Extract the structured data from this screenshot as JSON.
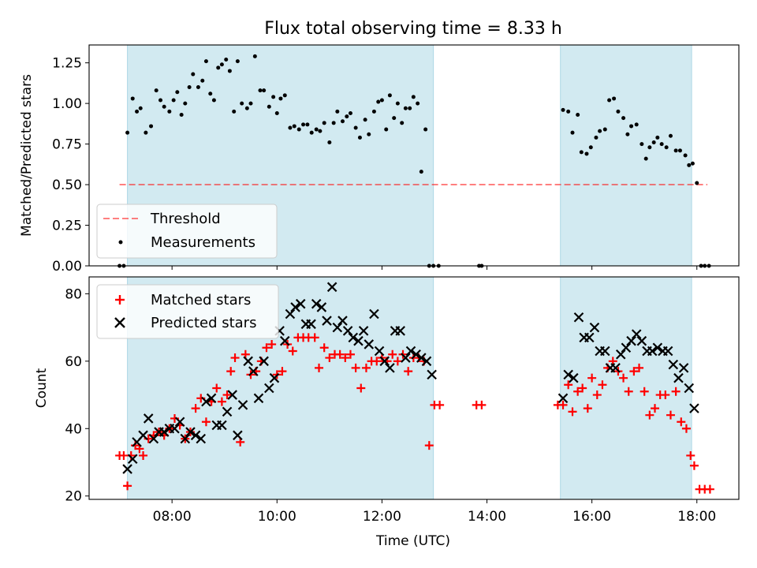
{
  "title": "Flux total observing time = 8.33 h",
  "colors": {
    "band": "#add8e6",
    "threshold": "#ff0000",
    "measurement": "#000000",
    "matched": "#ff0000",
    "predicted": "#000000"
  },
  "chart_data": [
    {
      "type": "scatter",
      "ylabel": "Matched/Predicted stars",
      "ylim": [
        0,
        1.36
      ],
      "yticks": [
        0,
        0.25,
        0.5,
        0.75,
        1.0,
        1.25
      ],
      "ytick_labels": [
        "0.00",
        "0.25",
        "0.50",
        "0.75",
        "1.00",
        "1.25"
      ],
      "xlim": [
        6.42,
        18.8
      ],
      "xticks": [
        8,
        10,
        12,
        14,
        16,
        18
      ],
      "legend": {
        "position": "lower-left",
        "entries": [
          {
            "label": "Threshold",
            "kind": "line"
          },
          {
            "label": "Measurements",
            "kind": "dot"
          }
        ]
      },
      "observing_windows": [
        [
          7.15,
          12.98
        ],
        [
          15.4,
          17.9
        ]
      ],
      "threshold": {
        "y": 0.5,
        "x_start": 7.0,
        "x_end": 18.2
      },
      "series": [
        {
          "name": "Measurements",
          "x": [
            7.0,
            7.08,
            7.15,
            7.25,
            7.33,
            7.4,
            7.5,
            7.6,
            7.7,
            7.78,
            7.85,
            7.95,
            8.03,
            8.1,
            8.18,
            8.25,
            8.33,
            8.4,
            8.5,
            8.58,
            8.65,
            8.73,
            8.8,
            8.88,
            8.95,
            9.03,
            9.1,
            9.18,
            9.25,
            9.33,
            9.43,
            9.5,
            9.58,
            9.68,
            9.75,
            9.85,
            9.93,
            10.0,
            10.07,
            10.15,
            10.25,
            10.33,
            10.42,
            10.5,
            10.58,
            10.66,
            10.75,
            10.82,
            10.9,
            11.0,
            11.08,
            11.15,
            11.25,
            11.33,
            11.4,
            11.5,
            11.58,
            11.68,
            11.75,
            11.85,
            11.93,
            12.0,
            12.08,
            12.15,
            12.23,
            12.3,
            12.38,
            12.45,
            12.53,
            12.6,
            12.68,
            12.75,
            12.83,
            12.9,
            12.98,
            13.08,
            13.85,
            13.9,
            15.45,
            15.55,
            15.63,
            15.73,
            15.8,
            15.9,
            15.98,
            16.08,
            16.15,
            16.25,
            16.33,
            16.42,
            16.5,
            16.6,
            16.68,
            16.75,
            16.85,
            16.95,
            17.03,
            17.1,
            17.18,
            17.25,
            17.33,
            17.42,
            17.5,
            17.6,
            17.68,
            17.78,
            17.85,
            17.92,
            18.0,
            18.08,
            18.15,
            18.23
          ],
          "y": [
            0.0,
            0.0,
            0.82,
            1.03,
            0.95,
            0.97,
            0.82,
            0.86,
            1.08,
            1.02,
            0.98,
            0.95,
            1.02,
            1.07,
            0.93,
            1.0,
            1.1,
            1.18,
            1.1,
            1.14,
            1.26,
            1.06,
            1.02,
            1.22,
            1.24,
            1.27,
            1.2,
            0.95,
            1.26,
            1.0,
            0.97,
            1.0,
            1.29,
            1.08,
            1.08,
            0.98,
            1.04,
            0.94,
            1.03,
            1.05,
            0.85,
            0.86,
            0.84,
            0.87,
            0.87,
            0.82,
            0.84,
            0.83,
            0.88,
            0.76,
            0.88,
            0.95,
            0.89,
            0.92,
            0.94,
            0.85,
            0.79,
            0.9,
            0.81,
            0.95,
            1.01,
            1.02,
            0.84,
            1.05,
            0.91,
            1.0,
            0.88,
            0.97,
            0.97,
            1.04,
            1.0,
            0.58,
            0.84,
            0.0,
            0.0,
            0.0,
            0.0,
            0.0,
            0.96,
            0.95,
            0.82,
            0.93,
            0.7,
            0.69,
            0.73,
            0.79,
            0.83,
            0.84,
            1.02,
            1.03,
            0.95,
            0.91,
            0.81,
            0.86,
            0.87,
            0.75,
            0.66,
            0.73,
            0.76,
            0.79,
            0.75,
            0.73,
            0.8,
            0.71,
            0.71,
            0.68,
            0.62,
            0.63,
            0.51,
            0.0,
            0.0,
            0.0
          ]
        }
      ]
    },
    {
      "type": "scatter",
      "xlabel": "Time (UTC)",
      "ylabel": "Count",
      "ylim": [
        19,
        85
      ],
      "yticks": [
        20,
        40,
        60,
        80
      ],
      "ytick_labels": [
        "20",
        "40",
        "60",
        "80"
      ],
      "xlim": [
        6.42,
        18.8
      ],
      "xticks": [
        8,
        10,
        12,
        14,
        16,
        18
      ],
      "xtick_labels": [
        "08:00",
        "10:00",
        "12:00",
        "14:00",
        "16:00",
        "18:00"
      ],
      "legend": {
        "position": "top-left",
        "entries": [
          {
            "label": "Matched stars",
            "kind": "plus"
          },
          {
            "label": "Predicted stars",
            "kind": "cross"
          }
        ]
      },
      "observing_windows": [
        [
          7.15,
          12.98
        ],
        [
          15.4,
          17.9
        ]
      ],
      "series": [
        {
          "name": "Matched stars",
          "x": [
            7.0,
            7.08,
            7.15,
            7.22,
            7.3,
            7.38,
            7.45,
            7.55,
            7.65,
            7.75,
            7.85,
            7.95,
            8.05,
            8.15,
            8.25,
            8.35,
            8.45,
            8.55,
            8.65,
            8.75,
            8.85,
            8.95,
            9.05,
            9.12,
            9.2,
            9.3,
            9.4,
            9.5,
            9.6,
            9.7,
            9.8,
            9.9,
            10.0,
            10.1,
            10.2,
            10.3,
            10.4,
            10.5,
            10.6,
            10.72,
            10.8,
            10.9,
            11.0,
            11.1,
            11.2,
            11.3,
            11.4,
            11.5,
            11.6,
            11.7,
            11.8,
            11.9,
            12.0,
            12.1,
            12.2,
            12.3,
            12.4,
            12.5,
            12.6,
            12.7,
            12.8,
            12.9,
            13.0,
            13.1,
            13.8,
            13.9,
            15.35,
            15.45,
            15.55,
            15.63,
            15.73,
            15.82,
            15.92,
            16.0,
            16.1,
            16.2,
            16.3,
            16.4,
            16.5,
            16.6,
            16.7,
            16.8,
            16.9,
            17.0,
            17.1,
            17.2,
            17.3,
            17.4,
            17.5,
            17.6,
            17.7,
            17.8,
            17.88,
            17.95,
            18.05,
            18.15,
            18.25
          ],
          "y": [
            32,
            32,
            23,
            32,
            35,
            34,
            32,
            37,
            38,
            39,
            38,
            40,
            43,
            41,
            37,
            39,
            46,
            49,
            42,
            48,
            52,
            48,
            50,
            57,
            61,
            36,
            62,
            56,
            57,
            60,
            64,
            65,
            56,
            57,
            65,
            63,
            67,
            67,
            67,
            67,
            58,
            64,
            61,
            62,
            62,
            61,
            62,
            58,
            52,
            58,
            60,
            60,
            61,
            60,
            62,
            60,
            62,
            57,
            61,
            61,
            60,
            35,
            47,
            47,
            47,
            47,
            47,
            47,
            53,
            45,
            51,
            52,
            46,
            55,
            50,
            53,
            58,
            60,
            57,
            55,
            51,
            57,
            58,
            51,
            44,
            46,
            50,
            50,
            44,
            51,
            42,
            40,
            32,
            29,
            22,
            22,
            22
          ]
        },
        {
          "name": "Predicted stars",
          "x": [
            7.15,
            7.25,
            7.33,
            7.45,
            7.55,
            7.65,
            7.75,
            7.85,
            7.95,
            8.05,
            8.15,
            8.25,
            8.35,
            8.45,
            8.55,
            8.65,
            8.75,
            8.85,
            8.95,
            9.05,
            9.15,
            9.25,
            9.35,
            9.45,
            9.55,
            9.65,
            9.75,
            9.85,
            9.95,
            10.05,
            10.15,
            10.25,
            10.35,
            10.45,
            10.55,
            10.65,
            10.75,
            10.85,
            10.95,
            11.05,
            11.15,
            11.25,
            11.35,
            11.45,
            11.55,
            11.65,
            11.75,
            11.85,
            11.95,
            12.05,
            12.15,
            12.25,
            12.35,
            12.45,
            12.55,
            12.65,
            12.75,
            12.85,
            12.95,
            15.45,
            15.55,
            15.65,
            15.75,
            15.85,
            15.95,
            16.05,
            16.15,
            16.25,
            16.35,
            16.45,
            16.55,
            16.65,
            16.75,
            16.85,
            16.95,
            17.05,
            17.15,
            17.25,
            17.35,
            17.45,
            17.55,
            17.65,
            17.75,
            17.85,
            17.95
          ],
          "y": [
            28,
            31,
            36,
            38,
            43,
            37,
            39,
            39,
            40,
            40,
            42,
            37,
            39,
            38,
            37,
            48,
            49,
            41,
            41,
            45,
            50,
            38,
            47,
            60,
            57,
            49,
            60,
            52,
            55,
            69,
            66,
            74,
            76,
            77,
            71,
            71,
            77,
            76,
            72,
            82,
            70,
            72,
            69,
            67,
            66,
            69,
            65,
            74,
            63,
            60,
            58,
            69,
            69,
            61,
            63,
            62,
            61,
            60,
            56,
            49,
            56,
            55,
            73,
            67,
            67,
            70,
            63,
            63,
            58,
            58,
            62,
            64,
            66,
            68,
            66,
            63,
            63,
            64,
            63,
            63,
            59,
            55,
            58,
            52,
            46
          ]
        }
      ]
    }
  ]
}
